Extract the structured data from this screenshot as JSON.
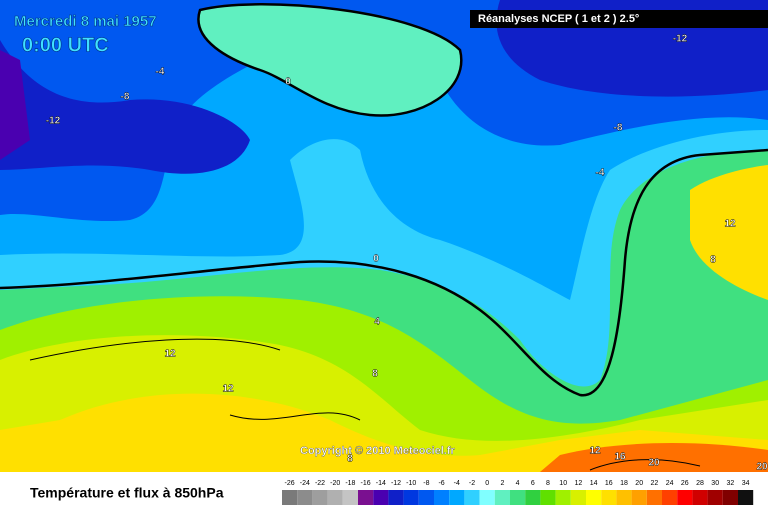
{
  "header": {
    "date": "Mercredi 8 mai 1957",
    "time": "0:00 UTC",
    "source": "Réanalyses NCEP ( 1 et 2 ) 2.5°"
  },
  "map": {
    "contour_labels": [
      -4,
      -8,
      -12,
      0,
      -12,
      -8,
      -4,
      12,
      8,
      0,
      4,
      12,
      8,
      12,
      12,
      16,
      20,
      8,
      20
    ],
    "copyright": "Copyright © 2010 Meteociel.fr"
  },
  "legend": {
    "title": "Température et flux à 850hPa",
    "scale": [
      -26,
      -24,
      -22,
      -20,
      -18,
      -16,
      -14,
      -12,
      -10,
      -8,
      -6,
      -4,
      -2,
      0,
      2,
      4,
      6,
      8,
      10,
      12,
      14,
      16,
      18,
      20,
      22,
      24,
      26,
      28,
      30,
      32,
      34
    ],
    "colors": [
      "#7a7a7a",
      "#8c8c8c",
      "#9e9e9e",
      "#b0b0b0",
      "#c4c4c4",
      "#7a1090",
      "#4a00b0",
      "#1020c8",
      "#0038e0",
      "#0058f0",
      "#0080ff",
      "#00a8ff",
      "#30d0ff",
      "#80ffff",
      "#60f0c0",
      "#40e080",
      "#30d040",
      "#60e000",
      "#a0f000",
      "#d8f000",
      "#ffff00",
      "#ffe000",
      "#ffc000",
      "#ffa000",
      "#ff7000",
      "#ff4000",
      "#ff0000",
      "#d00000",
      "#a00000",
      "#800000",
      "#101010"
    ]
  }
}
